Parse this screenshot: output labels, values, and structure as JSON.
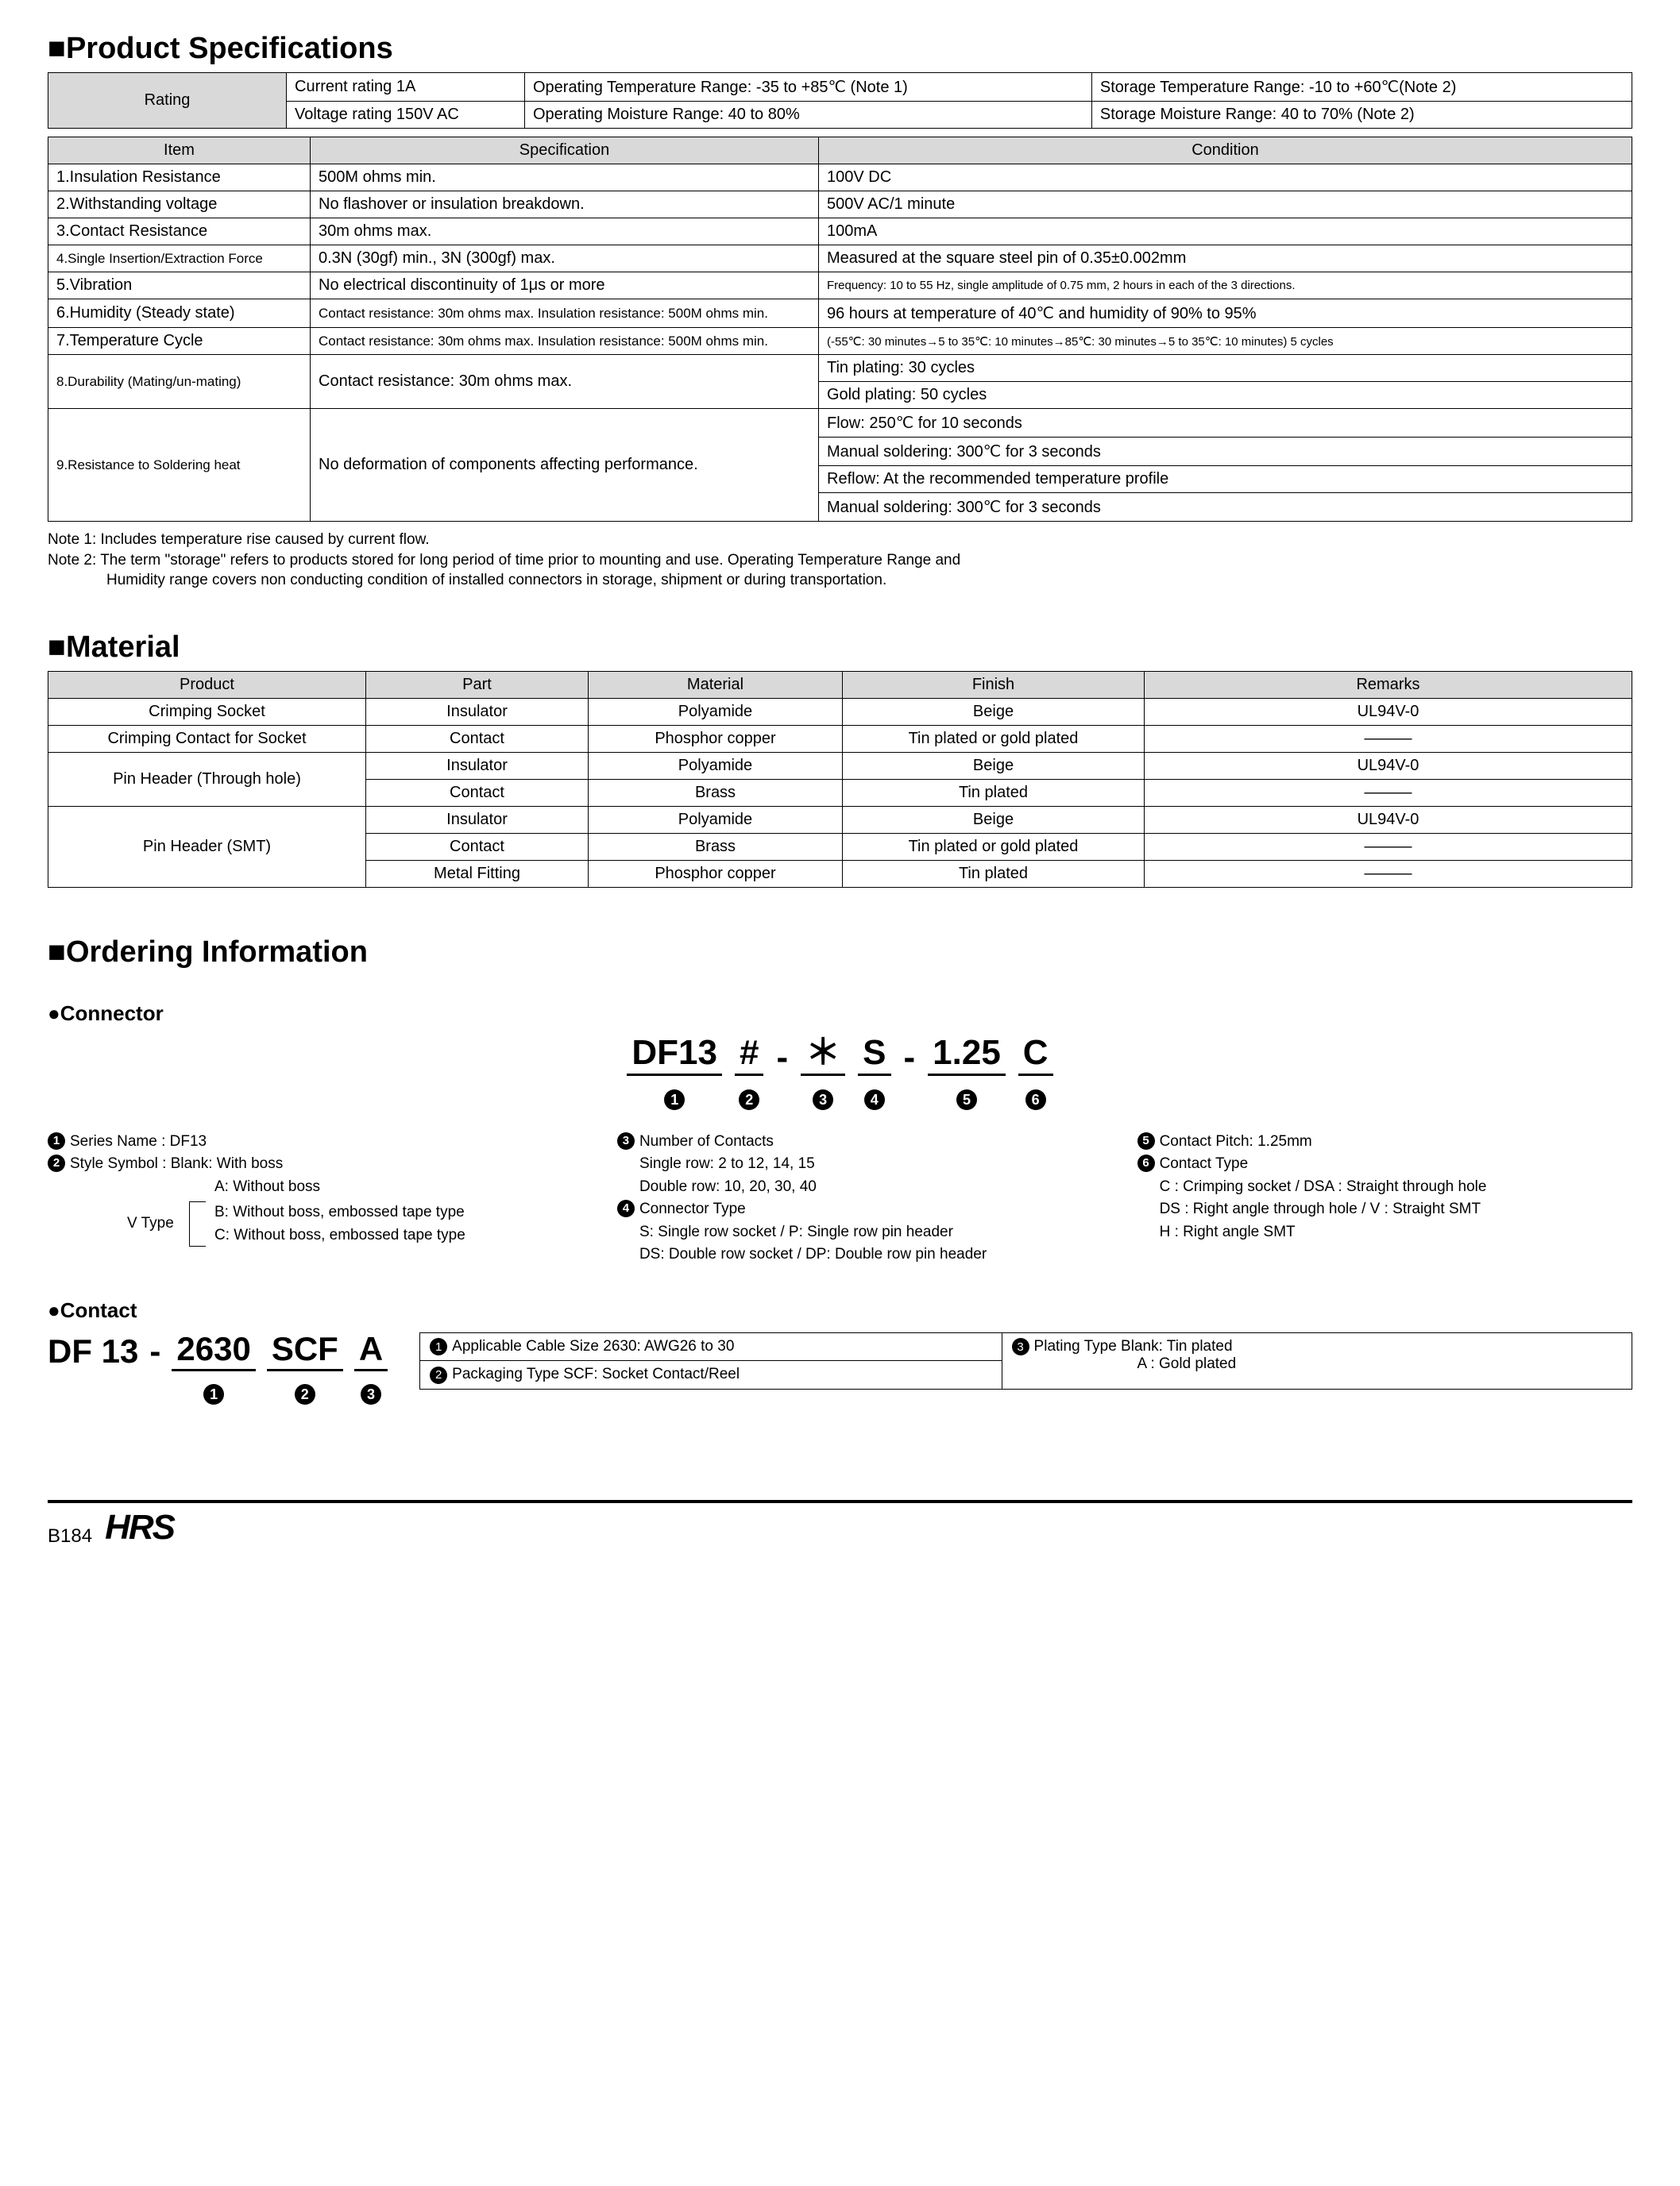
{
  "sections": {
    "spec_title": "■Product Specifications",
    "material_title": "■Material",
    "ordering_title": "■Ordering Information"
  },
  "rating_table": {
    "header": "Rating",
    "cells": {
      "current": "Current rating  1A",
      "voltage": "Voltage rating  150V AC",
      "op_temp": "Operating Temperature Range: -35 to +85℃ (Note 1)",
      "op_moist": "Operating Moisture Range: 40 to 80%",
      "st_temp": "Storage Temperature Range: -10 to +60℃(Note 2)",
      "st_moist": "Storage Moisture Range: 40 to 70%        (Note 2)"
    }
  },
  "spec_table": {
    "head": {
      "item": "Item",
      "spec": "Specification",
      "cond": "Condition"
    },
    "rows": [
      {
        "item": "1.Insulation Resistance",
        "spec": "500M ohms min.",
        "cond": [
          "100V DC"
        ]
      },
      {
        "item": "2.Withstanding voltage",
        "spec": "No flashover or insulation breakdown.",
        "cond": [
          "500V AC/1 minute"
        ]
      },
      {
        "item": "3.Contact Resistance",
        "spec": "30m ohms max.",
        "cond": [
          "100mA"
        ]
      },
      {
        "item": "4.Single Insertion/Extraction Force",
        "spec": "0.3N (30gf) min., 3N (300gf) max.",
        "cond": [
          "Measured at the square steel pin of 0.35±0.002mm"
        ],
        "small_item": true
      },
      {
        "item": "5.Vibration",
        "spec": "No electrical discontinuity of 1μs or more",
        "cond": [
          "Frequency: 10 to 55 Hz, single amplitude of 0.75 mm, 2 hours in each of the 3 directions."
        ],
        "small_cond": true
      },
      {
        "item": "6.Humidity (Steady state)",
        "spec": "Contact resistance: 30m ohms max. Insulation resistance: 500M ohms min.",
        "cond": [
          "96 hours at temperature of 40℃ and humidity of 90% to 95%"
        ],
        "small_spec": true
      },
      {
        "item": "7.Temperature Cycle",
        "spec": "Contact resistance: 30m ohms max. Insulation resistance: 500M ohms min.",
        "cond": [
          "(-55℃: 30 minutes→5 to 35℃: 10 minutes→85℃: 30 minutes→5 to 35℃: 10 minutes) 5 cycles"
        ],
        "small_spec": true,
        "small_cond": true
      },
      {
        "item": "8.Durability (Mating/un-mating)",
        "spec": "Contact resistance: 30m ohms max.",
        "cond": [
          "Tin plating: 30 cycles",
          "Gold plating: 50 cycles"
        ],
        "small_item": true
      },
      {
        "item": "9.Resistance to Soldering heat",
        "spec": "No deformation of components affecting performance.",
        "cond": [
          "Flow: 250℃ for 10 seconds",
          "Manual soldering: 300℃ for 3 seconds",
          "Reflow: At the recommended temperature profile",
          "Manual soldering: 300℃ for 3 seconds"
        ],
        "small_item": true
      }
    ]
  },
  "notes": {
    "n1": "Note 1: Includes temperature rise caused by current flow.",
    "n2a": "Note 2: The term \"storage\" refers to products stored for long period of time prior to mounting and use. Operating Temperature Range and",
    "n2b": "Humidity range covers non conducting condition of installed connectors in storage, shipment or during transportation."
  },
  "material_table": {
    "head": {
      "product": "Product",
      "part": "Part",
      "material": "Material",
      "finish": "Finish",
      "remarks": "Remarks"
    },
    "rows": [
      {
        "product": "Crimping Socket",
        "part": "Insulator",
        "material": "Polyamide",
        "finish": "Beige",
        "remarks": "UL94V-0"
      },
      {
        "product": "Crimping Contact for Socket",
        "part": "Contact",
        "material": "Phosphor copper",
        "finish": "Tin plated or gold plated",
        "remarks": "———"
      },
      {
        "product": "Pin Header (Through hole)",
        "rowspan": 2,
        "part": "Insulator",
        "material": "Polyamide",
        "finish": "Beige",
        "remarks": "UL94V-0"
      },
      {
        "part": "Contact",
        "material": "Brass",
        "finish": "Tin plated",
        "remarks": "———"
      },
      {
        "product": "Pin Header (SMT)",
        "rowspan": 3,
        "part": "Insulator",
        "material": "Polyamide",
        "finish": "Beige",
        "remarks": "UL94V-0"
      },
      {
        "part": "Contact",
        "material": "Brass",
        "finish": "Tin plated or gold plated",
        "remarks": "———"
      },
      {
        "part": "Metal Fitting",
        "material": "Phosphor copper",
        "finish": "Tin plated",
        "remarks": "———"
      }
    ]
  },
  "ordering": {
    "connector_label": "●Connector",
    "contact_label": "●Contact",
    "pn_conn": [
      "DF13",
      "#",
      "＊",
      "S",
      "1.25",
      "C"
    ],
    "pn_cont": [
      "DF 13",
      "2630",
      "SCF",
      "A"
    ],
    "col1": {
      "l1": "Series Name      : DF13",
      "l2": "Style Symbol     : Blank: With boss",
      "l3": "A: Without boss",
      "vlabel": "V Type",
      "l4": "B: Without boss, embossed tape type",
      "l5": "C: Without boss, embossed tape type"
    },
    "col2": {
      "l1": "Number of Contacts",
      "l2": "Single row: 2 to 12, 14, 15",
      "l3": "Double row: 10, 20, 30, 40",
      "l4": "Connector Type",
      "l5": "S: Single row socket / P: Single row pin header",
      "l6": "DS: Double row socket / DP: Double row pin header"
    },
    "col3": {
      "l1": "Contact Pitch: 1.25mm",
      "l2": "Contact Type",
      "l3": "C : Crimping socket / DSA : Straight through hole",
      "l4": "DS : Right angle through hole / V : Straight SMT",
      "l5": "H : Right angle SMT"
    },
    "contact_table": {
      "c1": "Applicable Cable Size  2630: AWG26 to 30",
      "c2": "Packaging Type  SCF: Socket Contact/Reel",
      "c3a": "Plating Type    Blank: Tin plated",
      "c3b": "A   : Gold plated"
    }
  },
  "footer": {
    "page": "B184",
    "logo": "HRS"
  }
}
